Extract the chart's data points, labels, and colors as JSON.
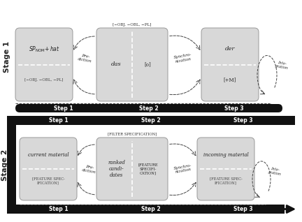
{
  "bg_color": "#ffffff",
  "box_fc": "#d8d8d8",
  "box_ec": "#999999",
  "dark": "#111111",
  "gray_text": "#333333",
  "stage1_label": "Stage 1",
  "stage2_label": "Stage 2",
  "s1_box2_toplabel": "[−OBJ, −OBL, −PL]",
  "s1_box2_left": "das",
  "s1_box2_right": "[o]",
  "s1_box3_top": "der",
  "s1_box3_bot": "[+M]",
  "s2_box1_top": "current material",
  "s2_box1_bot": "[FEATURE SPEC-\nIFICATION]",
  "s2_box2_toplabel": "[FILTER SPECIFICATION]",
  "s2_box2_left": "ranked\ncandi-\ndates",
  "s2_box2_right": "[FEATURE\nSPECIFI-\nCATION]",
  "s2_box3_top": "incoming material",
  "s2_box3_bot": "[FEATURE SPEC-\nIFICATION]",
  "pre_diction": "Pre-\ndiction",
  "sync": "Synchro-\nnization",
  "integ": "Inte-\ngration"
}
